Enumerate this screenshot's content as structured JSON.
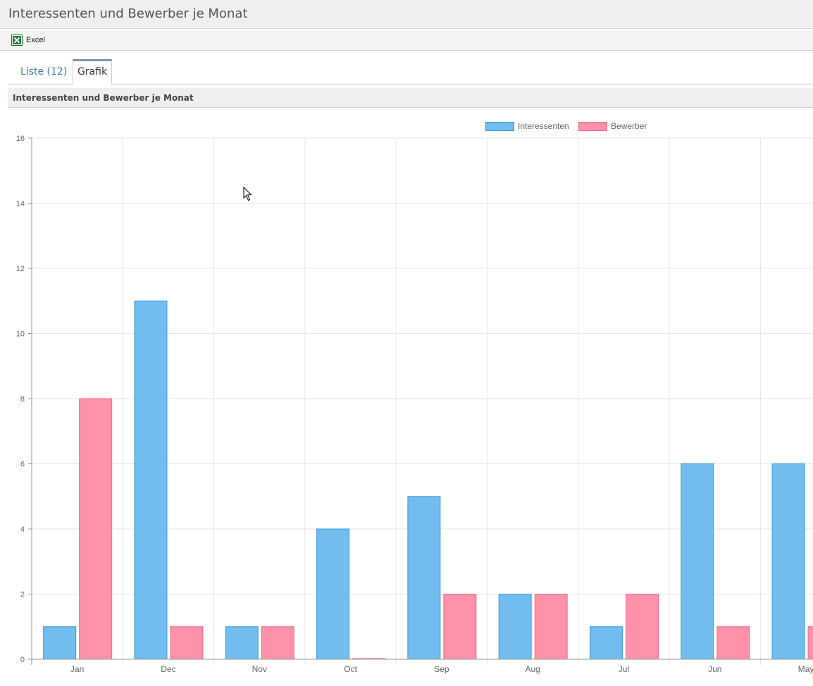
{
  "header": {
    "title": "Interessenten und Bewerber je Monat"
  },
  "toolbar": {
    "excel_label": "Excel"
  },
  "tabs": [
    {
      "label": "Liste (12)"
    },
    {
      "label": "Grafik"
    }
  ],
  "panel": {
    "title": "Interessenten und Bewerber je Monat"
  },
  "colors": {
    "interessenten_fill": "#71bdf0",
    "interessenten_border": "#3d9ad9",
    "bewerber_fill": "#ff92a9",
    "bewerber_border": "#f06a8a",
    "grid": "#e6e6e6",
    "axis": "#999999"
  },
  "chart_data": {
    "type": "bar",
    "categories": [
      "Jan",
      "Dec",
      "Nov",
      "Oct",
      "Sep",
      "Aug",
      "Jul",
      "Jun",
      "May"
    ],
    "series": [
      {
        "name": "Interessenten",
        "values": [
          1,
          11,
          1,
          4,
          5,
          2,
          1,
          6,
          6
        ]
      },
      {
        "name": "Bewerber",
        "values": [
          8,
          1,
          1,
          0,
          2,
          2,
          2,
          1,
          1
        ]
      }
    ],
    "ylim": [
      0,
      16
    ],
    "yticks": [
      0,
      2,
      4,
      6,
      8,
      10,
      12,
      14,
      16
    ],
    "legend": "top-center",
    "grid": true
  }
}
